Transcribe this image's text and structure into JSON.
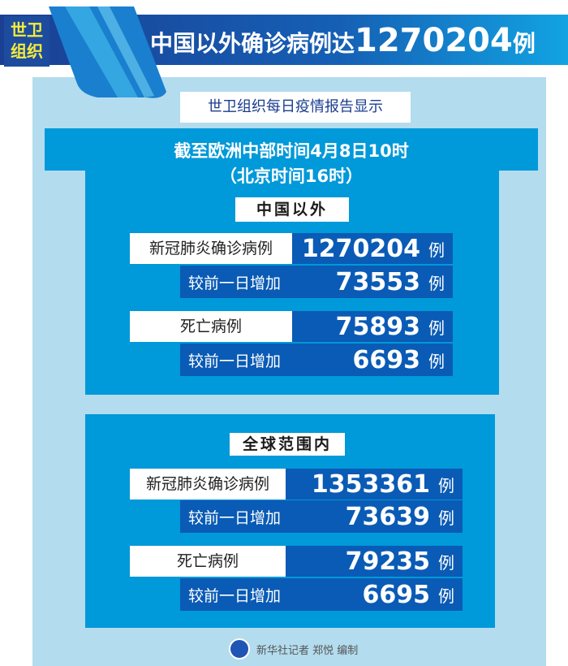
{
  "badge": "世卫组织",
  "title": {
    "prefix": "中国以外确诊病例达",
    "number": "1270204",
    "suffix": "例"
  },
  "subtitle": "世卫组织每日疫情报告显示",
  "time_line1": "截至欧洲中部时间4月8日10时",
  "time_line2": "（北京时间16时）",
  "sections": [
    {
      "header": "中国以外",
      "confirmed_label": "新冠肺炎确诊病例",
      "confirmed": "1270204",
      "increase_label": "较前一日增加",
      "confirmed_increase": "73553",
      "deaths_label": "死亡病例",
      "deaths": "75893",
      "deaths_increase": "6693",
      "unit": "例"
    },
    {
      "header": "全球范围内",
      "confirmed_label": "新冠肺炎确诊病例",
      "confirmed": "1353361",
      "increase_label": "较前一日增加",
      "confirmed_increase": "73639",
      "deaths_label": "死亡病例",
      "deaths": "79235",
      "deaths_increase": "6695",
      "unit": "例"
    }
  ],
  "credit": "新华社记者 郑悦 编制",
  "colors": {
    "banner": "#1560b5",
    "panel": "#b3dcee",
    "section": "#0099d9",
    "value_cell": "#0a5bb5",
    "badge_text": "#f6ec3a"
  }
}
